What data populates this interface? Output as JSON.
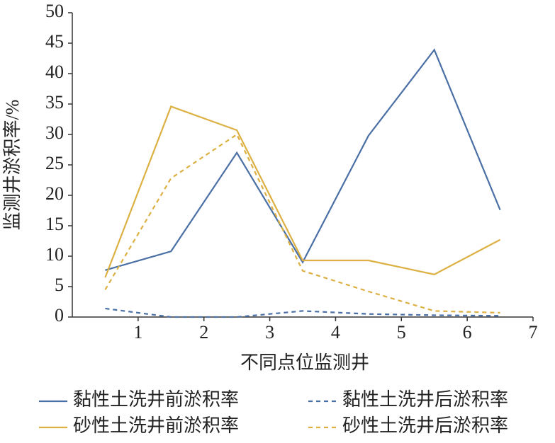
{
  "chart_data": {
    "type": "line",
    "x_label": "不同点位监测井",
    "y_label": "监测井淤积率/%",
    "x": [
      0.5,
      1.5,
      2.5,
      3.5,
      4.5,
      5.5,
      6.5
    ],
    "xlim": [
      0,
      7
    ],
    "xticks": [
      1,
      2,
      3,
      4,
      5,
      6,
      7
    ],
    "ylim": [
      0,
      50
    ],
    "yticks": [
      0,
      5,
      10,
      15,
      20,
      25,
      30,
      35,
      40,
      45,
      50
    ],
    "series": [
      {
        "name": "黏性土洗井前淤积率",
        "color": "#4a6fa5",
        "line_style": "solid",
        "values": [
          7.7,
          10.8,
          27,
          9,
          29.8,
          43.9,
          17.6
        ]
      },
      {
        "name": "黏性土洗井后淤积率",
        "color": "#4a6fa5",
        "line_style": "dashed",
        "values": [
          1.4,
          0,
          0,
          1,
          0.5,
          0.3,
          0.2
        ]
      },
      {
        "name": "砂性土洗井前淤积率",
        "color": "#dcb042",
        "line_style": "solid",
        "values": [
          6.5,
          34.6,
          30.7,
          9.3,
          9.3,
          7,
          12.7
        ]
      },
      {
        "name": "砂性土洗井后淤积率",
        "color": "#dcb042",
        "line_style": "dashed",
        "values": [
          4.5,
          22.8,
          30,
          7.6,
          4.2,
          1,
          0.7
        ]
      }
    ]
  }
}
